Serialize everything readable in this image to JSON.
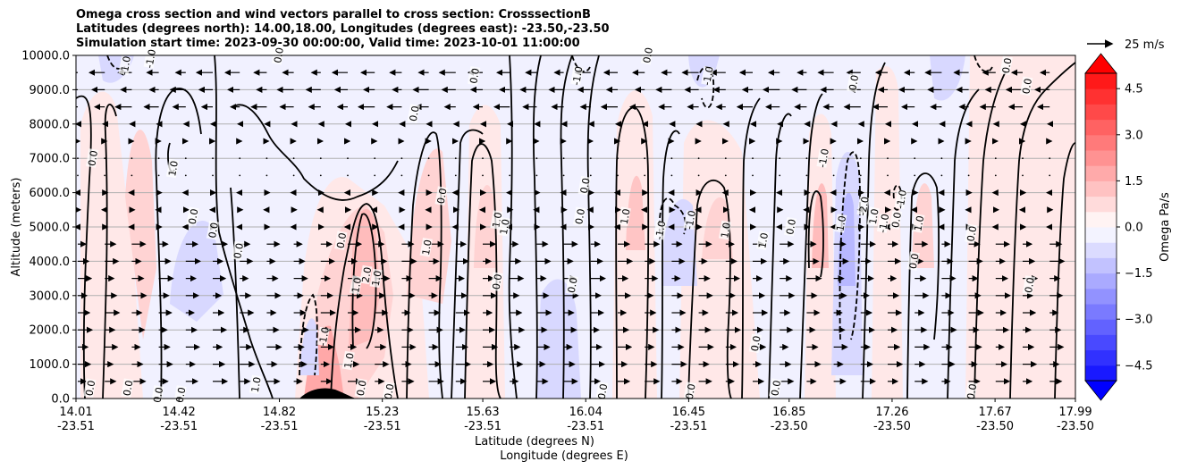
{
  "title_lines": [
    "Omega cross section and wind vectors parallel to cross section: CrosssectionB",
    "Latitudes (degrees north): 14.00,18.00, Longitudes (degrees east): -23.50,-23.50",
    "Simulation start time: 2023-09-30 00:00:00, Valid time: 2023-10-01 11:00:00"
  ],
  "chart_data": {
    "type": "contour",
    "title": "Omega cross section and wind vectors parallel to cross section: CrosssectionB",
    "ylabel": "Altitude (meters)",
    "xlabel_lines": [
      "Latitude (degrees N)",
      "Longitude (degrees E)"
    ],
    "ylim": [
      0,
      10000
    ],
    "y_ticks": [
      "0.0",
      "1000.0",
      "2000.0",
      "3000.0",
      "4000.0",
      "5000.0",
      "6000.0",
      "7000.0",
      "8000.0",
      "9000.0",
      "10000.0"
    ],
    "y_tick_values": [
      0,
      1000,
      2000,
      3000,
      4000,
      5000,
      6000,
      7000,
      8000,
      9000,
      10000
    ],
    "x_ticks": [
      {
        "lat": "14.01",
        "lon": "-23.51"
      },
      {
        "lat": "14.42",
        "lon": "-23.51"
      },
      {
        "lat": "14.82",
        "lon": "-23.51"
      },
      {
        "lat": "15.23",
        "lon": "-23.51"
      },
      {
        "lat": "15.63",
        "lon": "-23.51"
      },
      {
        "lat": "16.04",
        "lon": "-23.51"
      },
      {
        "lat": "16.45",
        "lon": "-23.51"
      },
      {
        "lat": "16.85",
        "lon": "-23.50"
      },
      {
        "lat": "17.26",
        "lon": "-23.50"
      },
      {
        "lat": "17.67",
        "lon": "-23.50"
      },
      {
        "lat": "17.99",
        "lon": "-23.50"
      }
    ],
    "x_tick_values": [
      14.01,
      14.42,
      14.82,
      15.23,
      15.63,
      16.04,
      16.45,
      16.85,
      17.26,
      17.67,
      17.99
    ],
    "xlim": [
      14.01,
      17.99
    ],
    "colorbar": {
      "label": "Omega Pa/s",
      "ticks": [
        "4.5",
        "3.0",
        "1.5",
        "0.0",
        "−1.5",
        "−3.0",
        "−4.5"
      ],
      "tick_values": [
        4.5,
        3.0,
        1.5,
        0.0,
        -1.5,
        -3.0,
        -4.5
      ],
      "range": [
        -5,
        5
      ],
      "low_color": "#0000ff",
      "high_color": "#ff0000"
    },
    "quiver_key": "25 m/s",
    "contour_labels": [
      {
        "text": "0.0",
        "x": 14.08,
        "y": 7000
      },
      {
        "text": "1.0",
        "x": 14.4,
        "y": 6700
      },
      {
        "text": "0.0",
        "x": 14.48,
        "y": 5300
      },
      {
        "text": "0.0",
        "x": 14.56,
        "y": 4900
      },
      {
        "text": "0.0",
        "x": 14.66,
        "y": 4300
      },
      {
        "text": "0.0",
        "x": 14.07,
        "y": 300
      },
      {
        "text": "0.0",
        "x": 14.22,
        "y": 300
      },
      {
        "text": "0.0",
        "x": 14.34,
        "y": 100
      },
      {
        "text": "0.0",
        "x": 14.43,
        "y": 100
      },
      {
        "text": "1.0",
        "x": 14.73,
        "y": 400
      },
      {
        "text": "-1.0",
        "x": 14.21,
        "y": 9700
      },
      {
        "text": "-1.0",
        "x": 14.31,
        "y": 9900
      },
      {
        "text": "0.0",
        "x": 14.82,
        "y": 10000
      },
      {
        "text": "0.0",
        "x": 15.07,
        "y": 4600
      },
      {
        "text": "1.0",
        "x": 15.1,
        "y": 1100
      },
      {
        "text": "1.0",
        "x": 15.21,
        "y": 3500
      },
      {
        "text": "2.0",
        "x": 15.17,
        "y": 3600
      },
      {
        "text": "1.0",
        "x": 15.13,
        "y": 3300
      },
      {
        "text": "-1.0",
        "x": 15.0,
        "y": 1800
      },
      {
        "text": "0.0",
        "x": 15.15,
        "y": 300
      },
      {
        "text": "0.0",
        "x": 15.26,
        "y": 200
      },
      {
        "text": "0.0",
        "x": 15.36,
        "y": 8300
      },
      {
        "text": "0.0",
        "x": 15.47,
        "y": 5900
      },
      {
        "text": "1.0",
        "x": 15.41,
        "y": 4400
      },
      {
        "text": "1.0",
        "x": 15.69,
        "y": 5200
      },
      {
        "text": "1.0",
        "x": 15.72,
        "y": 5000
      },
      {
        "text": "0.0",
        "x": 15.6,
        "y": 9400
      },
      {
        "text": "0.0",
        "x": 15.69,
        "y": 3400
      },
      {
        "text": "0.0",
        "x": 15.99,
        "y": 3300
      },
      {
        "text": "-1.0",
        "x": 16.01,
        "y": 9400
      },
      {
        "text": "0.0",
        "x": 16.04,
        "y": 6200
      },
      {
        "text": "0.0",
        "x": 16.02,
        "y": 5300
      },
      {
        "text": "0.0",
        "x": 16.11,
        "y": 200
      },
      {
        "text": "1.0",
        "x": 16.2,
        "y": 5300
      },
      {
        "text": "0.0",
        "x": 16.29,
        "y": 10000
      },
      {
        "text": "-1.0",
        "x": 16.46,
        "y": 5200
      },
      {
        "text": "-1.0",
        "x": 16.34,
        "y": 4900
      },
      {
        "text": "0.0",
        "x": 16.46,
        "y": 200
      },
      {
        "text": "-1.0",
        "x": 16.53,
        "y": 9400
      },
      {
        "text": "1.0",
        "x": 16.6,
        "y": 4900
      },
      {
        "text": "1.0",
        "x": 16.75,
        "y": 4600
      },
      {
        "text": "0.0",
        "x": 16.72,
        "y": 1600
      },
      {
        "text": "0.0",
        "x": 16.8,
        "y": 300
      },
      {
        "text": "0.0",
        "x": 16.86,
        "y": 5000
      },
      {
        "text": "-1.0",
        "x": 16.99,
        "y": 7000
      },
      {
        "text": "1.0",
        "x": 17.06,
        "y": 5100
      },
      {
        "text": "-2.0",
        "x": 17.15,
        "y": 5600
      },
      {
        "text": "0.0",
        "x": 17.11,
        "y": 9200
      },
      {
        "text": "-1.0",
        "x": 17.23,
        "y": 5100
      },
      {
        "text": "1.0",
        "x": 17.19,
        "y": 5300
      },
      {
        "text": "-1.0",
        "x": 17.3,
        "y": 5800
      },
      {
        "text": "0.0",
        "x": 17.28,
        "y": 5200
      },
      {
        "text": "1.0",
        "x": 17.37,
        "y": 5100
      },
      {
        "text": "0.0",
        "x": 17.35,
        "y": 4000
      },
      {
        "text": "0.0",
        "x": 17.58,
        "y": 4800
      },
      {
        "text": "0.0",
        "x": 17.72,
        "y": 9700
      },
      {
        "text": "0.0",
        "x": 17.8,
        "y": 9100
      },
      {
        "text": "0.0",
        "x": 17.81,
        "y": 3300
      },
      {
        "text": "0.0",
        "x": 17.58,
        "y": 200
      }
    ]
  }
}
